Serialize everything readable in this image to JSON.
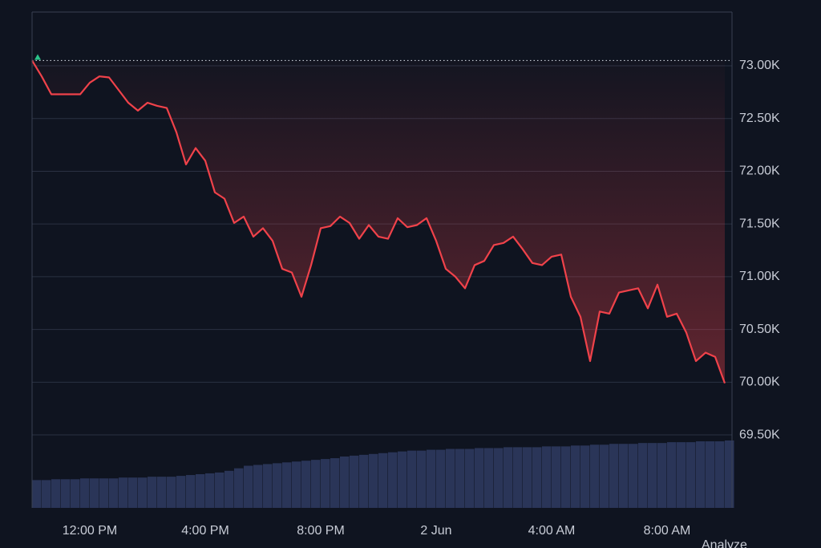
{
  "chart_data": {
    "type": "line",
    "categories": [
      null,
      null,
      null,
      null,
      null,
      null,
      "12:00 PM",
      null,
      null,
      null,
      null,
      null,
      null,
      null,
      null,
      null,
      null,
      null,
      "4:00 PM",
      null,
      null,
      null,
      null,
      null,
      null,
      null,
      null,
      null,
      null,
      null,
      "8:00 PM",
      null,
      null,
      null,
      null,
      null,
      null,
      null,
      null,
      null,
      null,
      null,
      "2 Jun",
      null,
      null,
      null,
      null,
      null,
      null,
      null,
      null,
      null,
      null,
      null,
      "4:00 AM",
      null,
      null,
      null,
      null,
      null,
      null,
      null,
      null,
      null,
      null,
      null,
      "8:00 AM",
      null,
      null,
      null,
      null,
      null,
      null
    ],
    "series": [
      {
        "name": "Price",
        "color": "#f0424a",
        "values": [
          73050,
          72900,
          72730,
          72730,
          72730,
          72730,
          72840,
          72900,
          72890,
          72770,
          72650,
          72575,
          72650,
          72620,
          72600,
          72370,
          72065,
          72220,
          72100,
          71800,
          71740,
          71510,
          71570,
          71380,
          71460,
          71340,
          71075,
          71040,
          70810,
          71110,
          71460,
          71480,
          71570,
          71510,
          71360,
          71490,
          71380,
          71360,
          71555,
          71470,
          71490,
          71555,
          71340,
          71075,
          71000,
          70890,
          71110,
          71150,
          71300,
          71320,
          71380,
          71260,
          71130,
          71110,
          71190,
          71210,
          70810,
          70620,
          70200,
          70670,
          70650,
          70850,
          70870,
          70890,
          70700,
          70925,
          70620,
          70650,
          70470,
          70200,
          70280,
          70240,
          69990
        ]
      },
      {
        "name": "Volume",
        "color": "#2a3558",
        "axis": "y2",
        "values": [
          33,
          33,
          34,
          34,
          34,
          35,
          35,
          35,
          35,
          36,
          36,
          36,
          37,
          37,
          37,
          38,
          39,
          40,
          41,
          42,
          44,
          47,
          50,
          51,
          52,
          53,
          54,
          55,
          56,
          57,
          58,
          59,
          61,
          62,
          63,
          64,
          65,
          66,
          67,
          68,
          68,
          69,
          69,
          70,
          70,
          70,
          71,
          71,
          71,
          72,
          72,
          72,
          72,
          73,
          73,
          73,
          74,
          74,
          75,
          75,
          76,
          76,
          76,
          77,
          77,
          77,
          78,
          78,
          78,
          79,
          79,
          79,
          80
        ]
      }
    ],
    "ylim": [
      68808,
      73510
    ],
    "yticks": [
      {
        "value": 73000,
        "label": "73.00K"
      },
      {
        "value": 72500,
        "label": "72.50K"
      },
      {
        "value": 72000,
        "label": "72.00K"
      },
      {
        "value": 71500,
        "label": "71.50K"
      },
      {
        "value": 71000,
        "label": "71.00K"
      },
      {
        "value": 70500,
        "label": "70.50K"
      },
      {
        "value": 70000,
        "label": "70.00K"
      },
      {
        "value": 69500,
        "label": "69.50K"
      }
    ],
    "y2lim": [
      0,
      100
    ],
    "grid": true,
    "footer_text": "Analyze"
  }
}
